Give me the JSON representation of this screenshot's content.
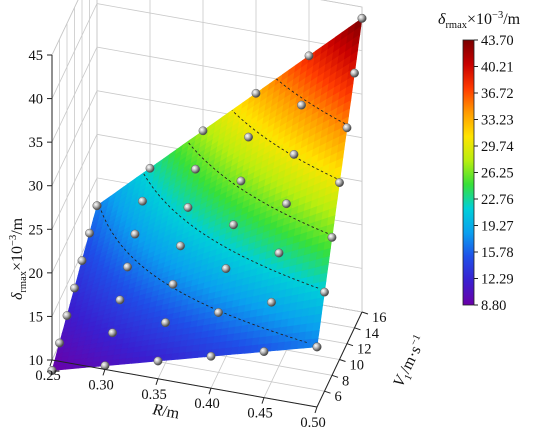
{
  "chart_data": {
    "type": "surface3d",
    "x_axis": {
      "label_var": "R",
      "label_unit": "/m",
      "ticks": [
        "0.25",
        "0.30",
        "0.35",
        "0.40",
        "0.45",
        "0.50"
      ],
      "range": [
        0.25,
        0.5
      ]
    },
    "y_axis": {
      "label_var": "V",
      "label_sub": "1",
      "label_unit": "/m·s",
      "label_sup": "−1",
      "ticks": [
        "6",
        "8",
        "10",
        "12",
        "14",
        "16"
      ],
      "range": [
        4,
        16
      ]
    },
    "z_axis": {
      "label_var": "δ",
      "label_sub": "rmax",
      "label_unit": "×10",
      "label_sup": "−3",
      "label_tail": "/m",
      "ticks": [
        "10",
        "15",
        "20",
        "25",
        "30",
        "35",
        "40",
        "45"
      ],
      "range": [
        10,
        45
      ]
    },
    "colorbar": {
      "title_var": "δ",
      "title_sub": "rmax",
      "title_unit": "×10",
      "title_sup": "−3",
      "title_tail": "/m",
      "ticks": [
        "43.70",
        "40.21",
        "36.72",
        "33.23",
        "29.74",
        "26.25",
        "22.76",
        "19.27",
        "15.78",
        "12.29",
        "8.80"
      ],
      "colors": [
        "#6a00a8",
        "#3a1fd0",
        "#1f4fe8",
        "#0aa0ef",
        "#00d0d8",
        "#38e038",
        "#b8ee10",
        "#ffe400",
        "#ff9a00",
        "#ff3a00",
        "#c80000",
        "#7a0000"
      ]
    },
    "surface": {
      "R_range": [
        0.25,
        0.5
      ],
      "V1_range": [
        4,
        16
      ],
      "delta_min": 8.8,
      "delta_max": 43.7
    },
    "grid": true,
    "samples_note": "",
    "points_R": [
      0.25,
      0.3,
      0.35,
      0.4,
      0.45,
      0.5
    ],
    "points_V1": [
      4,
      6,
      8,
      10,
      12,
      14,
      16
    ]
  }
}
